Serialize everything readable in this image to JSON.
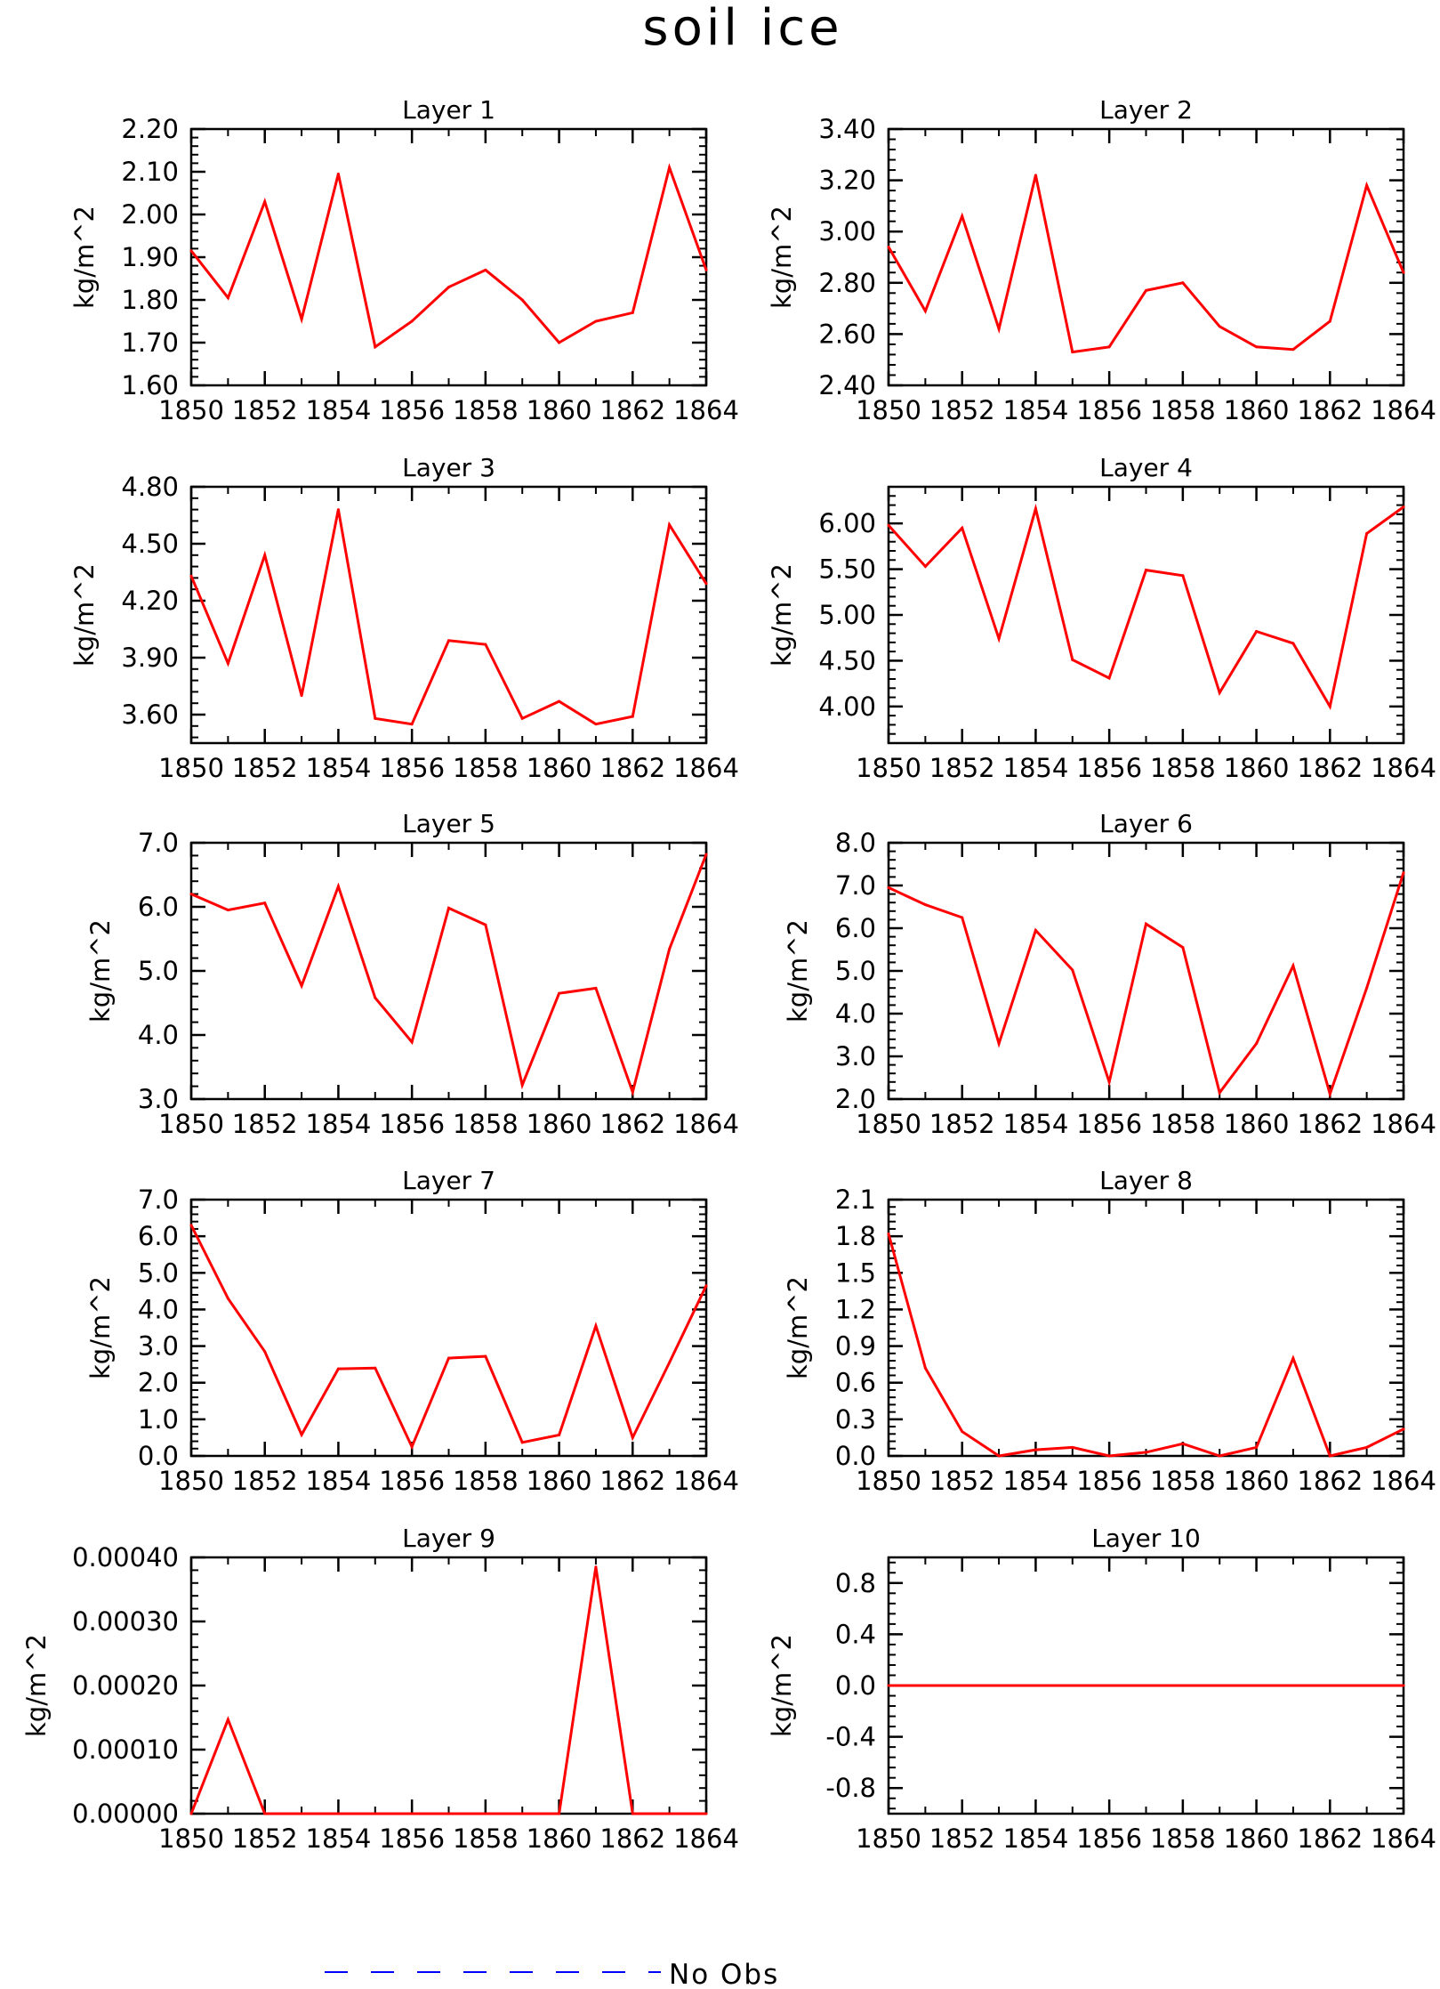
{
  "title": "soil ice",
  "colors": {
    "series": "#ff0000",
    "legend": "#0000ff",
    "axis": "#000000"
  },
  "legend": {
    "label": "No Obs",
    "style": "dashed",
    "placement": "bottom"
  },
  "chart_data": [
    {
      "type": "line",
      "title": "Layer 1",
      "ylabel": "kg/m^2",
      "x": [
        1850,
        1851,
        1852,
        1853,
        1854,
        1855,
        1856,
        1857,
        1858,
        1859,
        1860,
        1861,
        1862,
        1863,
        1864
      ],
      "xticks": [
        "1850",
        "1852",
        "1854",
        "1856",
        "1858",
        "1860",
        "1862",
        "1864"
      ],
      "ylim": [
        1.6,
        2.2
      ],
      "yticks": [
        "1.60",
        "1.70",
        "1.80",
        "1.90",
        "2.00",
        "2.10",
        "2.20"
      ],
      "values": [
        1.915,
        1.805,
        2.03,
        1.755,
        2.095,
        1.69,
        1.75,
        1.83,
        1.87,
        1.8,
        1.7,
        1.75,
        1.77,
        2.11,
        1.87
      ]
    },
    {
      "type": "line",
      "title": "Layer 2",
      "ylabel": "kg/m^2",
      "x": [
        1850,
        1851,
        1852,
        1853,
        1854,
        1855,
        1856,
        1857,
        1858,
        1859,
        1860,
        1861,
        1862,
        1863,
        1864
      ],
      "xticks": [
        "1850",
        "1852",
        "1854",
        "1856",
        "1858",
        "1860",
        "1862",
        "1864"
      ],
      "ylim": [
        2.4,
        3.4
      ],
      "yticks": [
        "2.40",
        "2.60",
        "2.80",
        "3.00",
        "3.20",
        "3.40"
      ],
      "values": [
        2.94,
        2.69,
        3.06,
        2.62,
        3.22,
        2.53,
        2.55,
        2.77,
        2.8,
        2.63,
        2.55,
        2.54,
        2.65,
        3.18,
        2.84
      ]
    },
    {
      "type": "line",
      "title": "Layer 3",
      "ylabel": "kg/m^2",
      "x": [
        1850,
        1851,
        1852,
        1853,
        1854,
        1855,
        1856,
        1857,
        1858,
        1859,
        1860,
        1861,
        1862,
        1863,
        1864
      ],
      "xticks": [
        "1850",
        "1852",
        "1854",
        "1856",
        "1858",
        "1860",
        "1862",
        "1864"
      ],
      "ylim": [
        3.45,
        4.8
      ],
      "yticks": [
        "3.60",
        "3.90",
        "4.20",
        "4.50",
        "4.80"
      ],
      "values": [
        4.33,
        3.87,
        4.44,
        3.7,
        4.68,
        3.58,
        3.55,
        3.99,
        3.97,
        3.58,
        3.67,
        3.55,
        3.59,
        4.6,
        4.29
      ]
    },
    {
      "type": "line",
      "title": "Layer 4",
      "ylabel": "kg/m^2",
      "x": [
        1850,
        1851,
        1852,
        1853,
        1854,
        1855,
        1856,
        1857,
        1858,
        1859,
        1860,
        1861,
        1862,
        1863,
        1864
      ],
      "xticks": [
        "1850",
        "1852",
        "1854",
        "1856",
        "1858",
        "1860",
        "1862",
        "1864"
      ],
      "ylim": [
        3.6,
        6.4
      ],
      "yticks": [
        "4.00",
        "4.50",
        "5.00",
        "5.50",
        "6.00"
      ],
      "values": [
        5.98,
        5.53,
        5.95,
        4.74,
        6.16,
        4.51,
        4.31,
        5.49,
        5.43,
        4.15,
        4.82,
        4.69,
        4.0,
        5.89,
        6.18
      ]
    },
    {
      "type": "line",
      "title": "Layer 5",
      "ylabel": "kg/m^2",
      "x": [
        1850,
        1851,
        1852,
        1853,
        1854,
        1855,
        1856,
        1857,
        1858,
        1859,
        1860,
        1861,
        1862,
        1863,
        1864
      ],
      "xticks": [
        "1850",
        "1852",
        "1854",
        "1856",
        "1858",
        "1860",
        "1862",
        "1864"
      ],
      "ylim": [
        3.0,
        7.0
      ],
      "yticks": [
        "3.0",
        "4.0",
        "5.0",
        "6.0",
        "7.0"
      ],
      "values": [
        6.2,
        5.95,
        6.06,
        4.77,
        6.32,
        4.58,
        3.89,
        5.98,
        5.72,
        3.22,
        4.65,
        4.73,
        3.11,
        5.34,
        6.82
      ]
    },
    {
      "type": "line",
      "title": "Layer 6",
      "ylabel": "kg/m^2",
      "x": [
        1850,
        1851,
        1852,
        1853,
        1854,
        1855,
        1856,
        1857,
        1858,
        1859,
        1860,
        1861,
        1862,
        1863,
        1864
      ],
      "xticks": [
        "1850",
        "1852",
        "1854",
        "1856",
        "1858",
        "1860",
        "1862",
        "1864"
      ],
      "ylim": [
        2.0,
        8.0
      ],
      "yticks": [
        "2.0",
        "3.0",
        "4.0",
        "5.0",
        "6.0",
        "7.0",
        "8.0"
      ],
      "values": [
        6.95,
        6.55,
        6.25,
        3.3,
        5.95,
        5.02,
        2.4,
        6.1,
        5.55,
        2.15,
        3.3,
        5.12,
        2.12,
        4.6,
        7.3
      ]
    },
    {
      "type": "line",
      "title": "Layer 7",
      "ylabel": "kg/m^2",
      "x": [
        1850,
        1851,
        1852,
        1853,
        1854,
        1855,
        1856,
        1857,
        1858,
        1859,
        1860,
        1861,
        1862,
        1863,
        1864
      ],
      "xticks": [
        "1850",
        "1852",
        "1854",
        "1856",
        "1858",
        "1860",
        "1862",
        "1864"
      ],
      "ylim": [
        0.0,
        7.0
      ],
      "yticks": [
        "0.0",
        "1.0",
        "2.0",
        "3.0",
        "4.0",
        "5.0",
        "6.0",
        "7.0"
      ],
      "values": [
        6.3,
        4.3,
        2.85,
        0.58,
        2.38,
        2.4,
        0.25,
        2.67,
        2.72,
        0.37,
        0.57,
        3.55,
        0.5,
        2.55,
        4.65
      ]
    },
    {
      "type": "line",
      "title": "Layer 8",
      "ylabel": "kg/m^2",
      "x": [
        1850,
        1851,
        1852,
        1853,
        1854,
        1855,
        1856,
        1857,
        1858,
        1859,
        1860,
        1861,
        1862,
        1863,
        1864
      ],
      "xticks": [
        "1850",
        "1852",
        "1854",
        "1856",
        "1858",
        "1860",
        "1862",
        "1864"
      ],
      "ylim": [
        0.0,
        2.1
      ],
      "yticks": [
        "0.0",
        "0.3",
        "0.6",
        "0.9",
        "1.2",
        "1.5",
        "1.8",
        "2.1"
      ],
      "values": [
        1.82,
        0.72,
        0.2,
        0.0,
        0.05,
        0.07,
        0.0,
        0.03,
        0.1,
        0.0,
        0.07,
        0.8,
        0.0,
        0.07,
        0.22
      ]
    },
    {
      "type": "line",
      "title": "Layer 9",
      "ylabel": "kg/m^2",
      "x": [
        1850,
        1851,
        1852,
        1853,
        1854,
        1855,
        1856,
        1857,
        1858,
        1859,
        1860,
        1861,
        1862,
        1863,
        1864
      ],
      "xticks": [
        "1850",
        "1852",
        "1854",
        "1856",
        "1858",
        "1860",
        "1862",
        "1864"
      ],
      "ylim": [
        0.0,
        0.0004
      ],
      "yticks": [
        "0.00000",
        "0.00010",
        "0.00020",
        "0.00030",
        "0.00040"
      ],
      "values": [
        0.0,
        0.000147,
        0.0,
        0.0,
        0.0,
        0.0,
        0.0,
        0.0,
        0.0,
        0.0,
        0.0,
        0.000385,
        0.0,
        0.0,
        0.0
      ]
    },
    {
      "type": "line",
      "title": "Layer 10",
      "ylabel": "kg/m^2",
      "x": [
        1850,
        1851,
        1852,
        1853,
        1854,
        1855,
        1856,
        1857,
        1858,
        1859,
        1860,
        1861,
        1862,
        1863,
        1864
      ],
      "xticks": [
        "1850",
        "1852",
        "1854",
        "1856",
        "1858",
        "1860",
        "1862",
        "1864"
      ],
      "ylim": [
        -1.0,
        1.0
      ],
      "yticks": [
        "-0.8",
        "-0.4",
        "0.0",
        "0.4",
        "0.8"
      ],
      "values": [
        0,
        0,
        0,
        0,
        0,
        0,
        0,
        0,
        0,
        0,
        0,
        0,
        0,
        0,
        0
      ]
    }
  ]
}
